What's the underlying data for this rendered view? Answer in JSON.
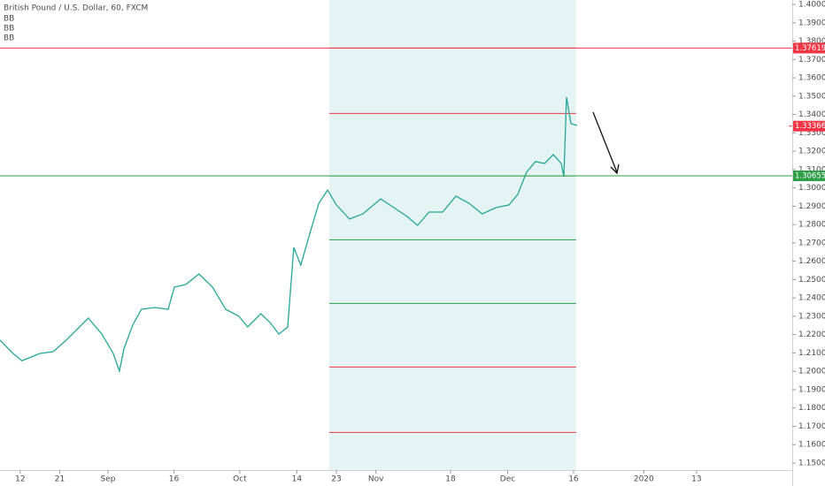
{
  "chart_data": {
    "type": "line",
    "title": "British Pound / U.S. Dollar, 60, FXCM",
    "x": [
      6.4,
      9.4,
      11.4,
      15.4,
      18.5,
      21.5,
      24.5,
      26.5,
      29.6,
      32.2,
      33.6,
      34.6,
      36.6,
      38.6,
      41.7,
      44.7,
      46.1,
      48.7,
      51.7,
      54.8,
      57.8,
      60.8,
      62.8,
      65.8,
      67.9,
      69.9,
      71.9,
      73.3,
      74.9,
      76.9,
      79.0,
      81.0,
      83.0,
      86.0,
      89.0,
      93.1,
      96.1,
      99.1,
      101.5,
      104.1,
      107.2,
      110.2,
      113.2,
      116.2,
      119.3,
      122.3,
      124.3,
      126.3,
      128.3,
      130.4,
      132.4,
      134.2,
      134.8,
      135.4,
      136.4,
      137.8
    ],
    "series": [
      {
        "color": "#26a69a",
        "values": [
          1.217,
          1.2097,
          1.2058,
          1.2097,
          1.2107,
          1.217,
          1.2242,
          1.229,
          1.2203,
          1.2097,
          1.2001,
          1.2121,
          1.2251,
          1.2338,
          1.2348,
          1.2338,
          1.2459,
          1.2473,
          1.2531,
          1.2459,
          1.2338,
          1.23,
          1.2242,
          1.2314,
          1.2266,
          1.2203,
          1.2242,
          1.2675,
          1.2579,
          1.2748,
          1.2916,
          1.2988,
          1.2907,
          1.283,
          1.2858,
          1.294,
          1.2892,
          1.2844,
          1.2796,
          1.2868,
          1.2868,
          1.2955,
          1.2916,
          1.2858,
          1.2892,
          1.2907,
          1.2964,
          1.3085,
          1.3143,
          1.3133,
          1.3181,
          1.3133,
          1.3061,
          1.3494,
          1.335,
          1.334
        ]
      }
    ],
    "xlim": [
      6.4,
      186.8
    ],
    "xticks": [
      {
        "value": 11,
        "label": "12"
      },
      {
        "value": 20,
        "label": "21"
      },
      {
        "value": 31,
        "label": "Sep"
      },
      {
        "value": 46,
        "label": "16"
      },
      {
        "value": 61,
        "label": "Oct"
      },
      {
        "value": 74,
        "label": "14"
      },
      {
        "value": 83,
        "label": "23"
      },
      {
        "value": 92,
        "label": "Nov"
      },
      {
        "value": 109,
        "label": "18"
      },
      {
        "value": 122,
        "label": "Dec"
      },
      {
        "value": 137,
        "label": "16"
      },
      {
        "value": 153,
        "label": "2020"
      },
      {
        "value": 165,
        "label": "13"
      }
    ],
    "ylim": [
      1.14615,
      1.40241
    ],
    "yticks": [
      {
        "value": 1.15,
        "label": "1.15000"
      },
      {
        "value": 1.16,
        "label": "1.16000"
      },
      {
        "value": 1.17,
        "label": "1.17000"
      },
      {
        "value": 1.18,
        "label": "1.18000"
      },
      {
        "value": 1.19,
        "label": "1.19000"
      },
      {
        "value": 1.2,
        "label": "1.20000"
      },
      {
        "value": 1.21,
        "label": "1.21000"
      },
      {
        "value": 1.22,
        "label": "1.22000"
      },
      {
        "value": 1.23,
        "label": "1.23000"
      },
      {
        "value": 1.24,
        "label": "1.24000"
      },
      {
        "value": 1.25,
        "label": "1.25000"
      },
      {
        "value": 1.26,
        "label": "1.26000"
      },
      {
        "value": 1.27,
        "label": "1.27000"
      },
      {
        "value": 1.28,
        "label": "1.28000"
      },
      {
        "value": 1.29,
        "label": "1.29000"
      },
      {
        "value": 1.3,
        "label": "1.30000"
      },
      {
        "value": 1.31,
        "label": "1.31000"
      },
      {
        "value": 1.32,
        "label": "1.32000"
      },
      {
        "value": 1.33,
        "label": "1.33000"
      },
      {
        "value": 1.34,
        "label": "1.34000"
      },
      {
        "value": 1.35,
        "label": "1.35000"
      },
      {
        "value": 1.36,
        "label": "1.36000"
      },
      {
        "value": 1.37,
        "label": "1.37000"
      },
      {
        "value": 1.38,
        "label": "1.38000"
      },
      {
        "value": 1.39,
        "label": "1.39000"
      },
      {
        "value": 1.4,
        "label": "1.40000"
      }
    ],
    "region": {
      "x": [
        81.4,
        137.6
      ],
      "color": "#b2dfdb"
    },
    "indicators": [
      {
        "name": "BB",
        "color": "#f23645",
        "levels": [
          1.3762,
          1.1667
        ]
      },
      {
        "name": "BB",
        "color": "#f23645",
        "levels": [
          1.3406,
          1.2023
        ]
      },
      {
        "name": "BB",
        "color": "#2e9e47",
        "levels": [
          1.3065,
          1.2717,
          1.237
        ]
      }
    ],
    "hlines": [
      {
        "value": 1.37619,
        "color": "#f23645"
      },
      {
        "value": 1.30655,
        "color": "#2e9e47"
      }
    ],
    "last_price": {
      "value": 1.33366,
      "color": "#f23645"
    }
  }
}
